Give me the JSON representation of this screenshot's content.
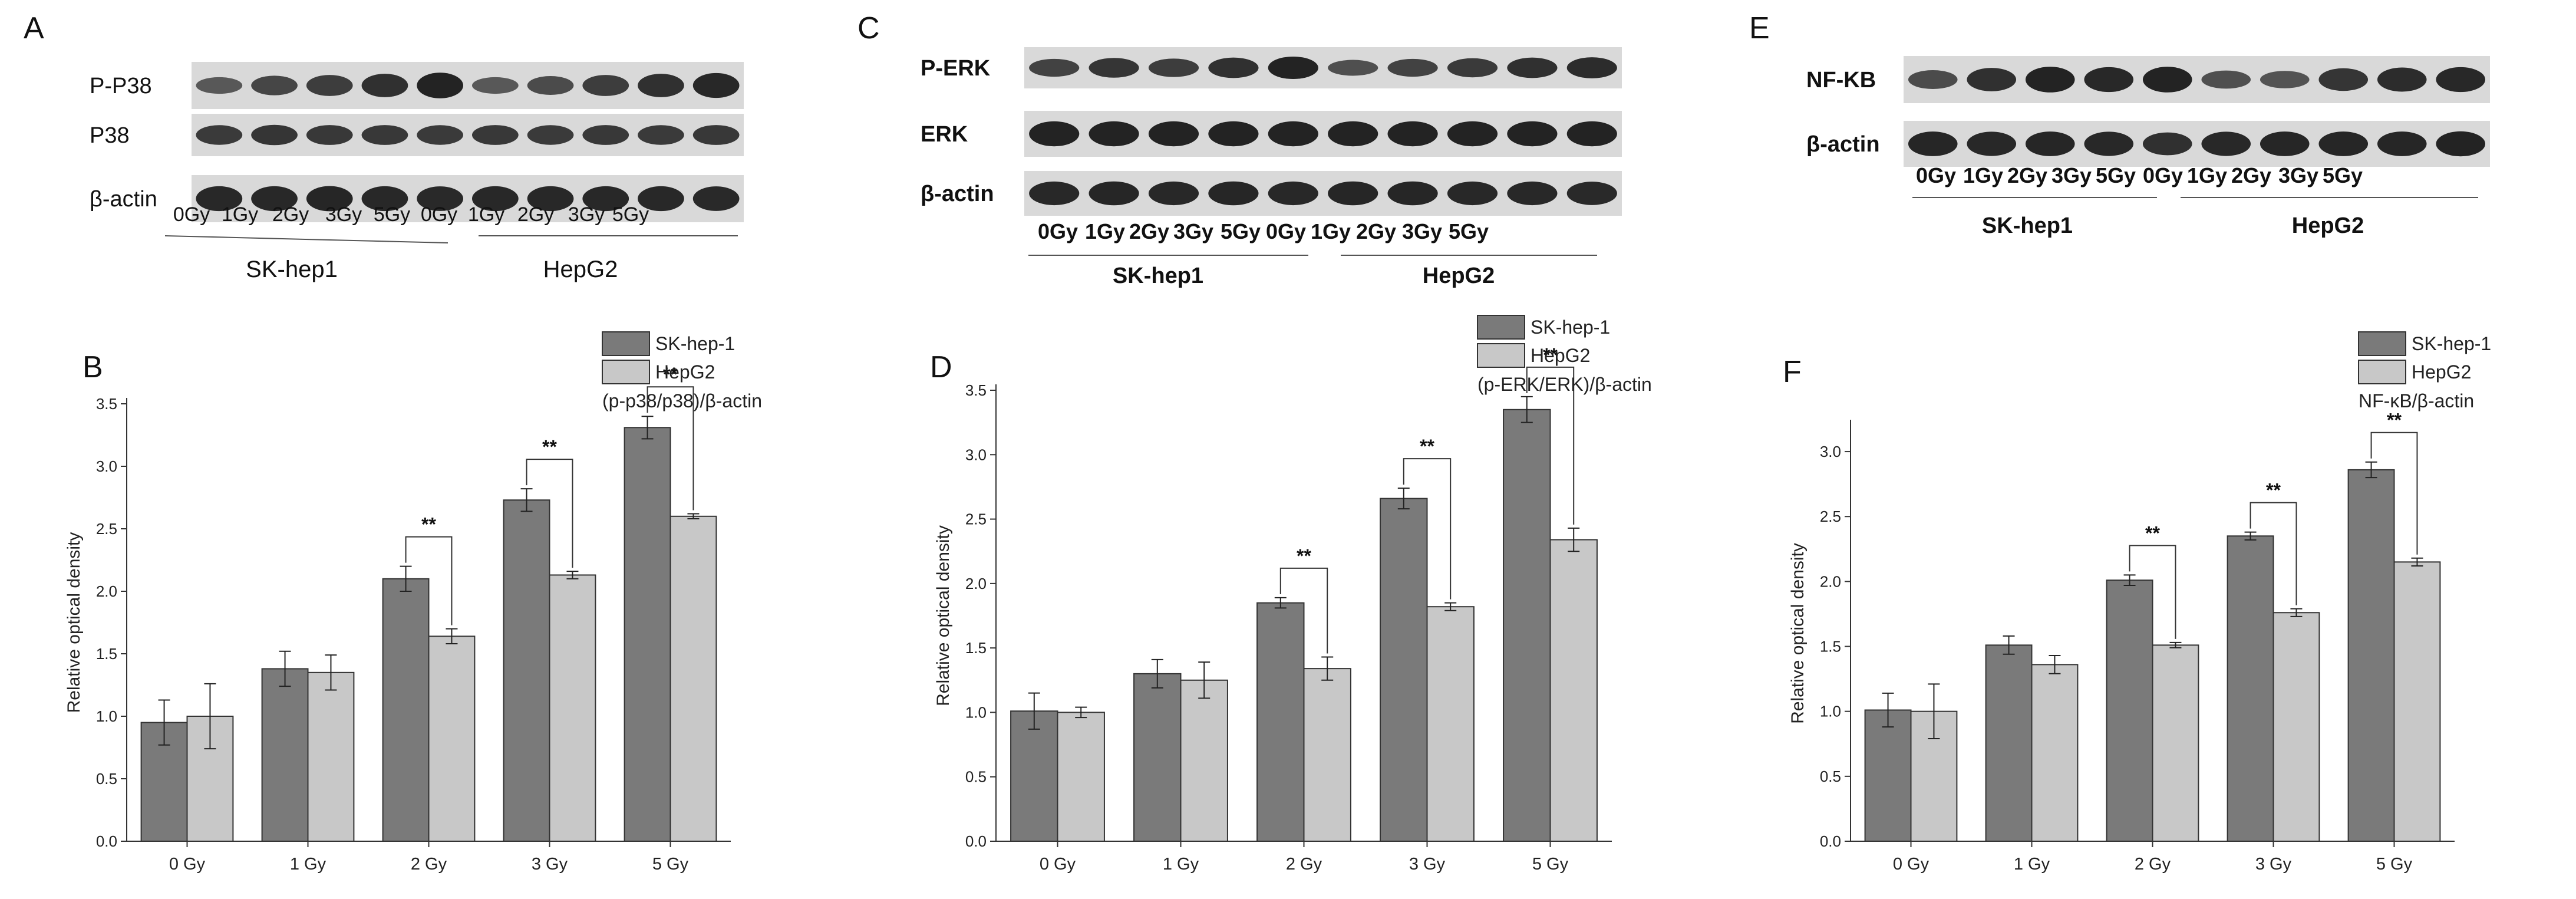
{
  "blots": [
    {
      "letter": "A",
      "rows": [
        "P-P38",
        "P38",
        "β-actin"
      ],
      "lanes": [
        "0Gy",
        "1Gy",
        "2Gy",
        "3Gy",
        "5Gy",
        "0Gy",
        "1Gy",
        "2Gy",
        "3Gy",
        "5Gy"
      ],
      "groups": [
        "SK-hep1",
        "HepG2"
      ]
    },
    {
      "letter": "C",
      "rows": [
        "P-ERK",
        "ERK",
        "β-actin"
      ],
      "lanes": [
        "0Gy",
        "1Gy",
        "2Gy",
        "3Gy",
        "5Gy",
        "0Gy",
        "1Gy",
        "2Gy",
        "3Gy",
        "5Gy"
      ],
      "groups": [
        "SK-hep1",
        "HepG2"
      ]
    },
    {
      "letter": "E",
      "rows": [
        "NF-KB",
        "β-actin"
      ],
      "lanes": [
        "0Gy",
        "1Gy",
        "2Gy",
        "3Gy",
        "5Gy",
        "0Gy",
        "1Gy",
        "2Gy",
        "3Gy",
        "5Gy"
      ],
      "groups": [
        "SK-hep1",
        "HepG2"
      ]
    }
  ],
  "chart_data": [
    {
      "letter": "B",
      "type": "bar",
      "ylabel": "Relative optical density",
      "ylim": [
        0,
        3.5
      ],
      "yticks": [
        "0.0",
        "0.5",
        "1.0",
        "1.5",
        "2.0",
        "2.5",
        "3.0",
        "3.5"
      ],
      "categories": [
        "0 Gy",
        "1 Gy",
        "2 Gy",
        "3 Gy",
        "5 Gy"
      ],
      "legend_note": "(p-p38/p38)/β-actin",
      "series": [
        {
          "name": "SK-hep-1",
          "color": "#7a7a7a",
          "values": [
            0.95,
            1.38,
            2.1,
            2.73,
            3.31
          ],
          "errors": [
            0.18,
            0.14,
            0.1,
            0.09,
            0.09
          ]
        },
        {
          "name": "HepG2",
          "color": "#c8c8c8",
          "values": [
            1.0,
            1.35,
            1.64,
            2.13,
            2.6
          ],
          "errors": [
            0.26,
            0.14,
            0.06,
            0.03,
            0.02
          ]
        }
      ],
      "significance": [
        {
          "category": "2 Gy",
          "label": "**"
        },
        {
          "category": "3 Gy",
          "label": "**"
        },
        {
          "category": "5 Gy",
          "label": "**"
        }
      ]
    },
    {
      "letter": "D",
      "type": "bar",
      "ylabel": "Relative optical density",
      "ylim": [
        0,
        3.5
      ],
      "yticks": [
        "0.0",
        "0.5",
        "1.0",
        "1.5",
        "2.0",
        "2.5",
        "3.0",
        "3.5"
      ],
      "categories": [
        "0 Gy",
        "1 Gy",
        "2 Gy",
        "3 Gy",
        "5 Gy"
      ],
      "legend_note": "(p-ERK/ERK)/β-actin",
      "series": [
        {
          "name": "SK-hep-1",
          "color": "#7a7a7a",
          "values": [
            1.01,
            1.3,
            1.85,
            2.66,
            3.35
          ],
          "errors": [
            0.14,
            0.11,
            0.04,
            0.08,
            0.1
          ]
        },
        {
          "name": "HepG2",
          "color": "#c8c8c8",
          "values": [
            1.0,
            1.25,
            1.34,
            1.82,
            2.34
          ],
          "errors": [
            0.04,
            0.14,
            0.09,
            0.03,
            0.09
          ]
        }
      ],
      "significance": [
        {
          "category": "2 Gy",
          "label": "**"
        },
        {
          "category": "3 Gy",
          "label": "**"
        },
        {
          "category": "5 Gy",
          "label": "**"
        }
      ]
    },
    {
      "letter": "F",
      "type": "bar",
      "ylabel": "Relative optical density",
      "ylim": [
        0,
        3.2
      ],
      "yticks": [
        "0.0",
        "0.5",
        "1.0",
        "1.5",
        "2.0",
        "2.5",
        "3.0"
      ],
      "categories": [
        "0 Gy",
        "1 Gy",
        "2 Gy",
        "3 Gy",
        "5 Gy"
      ],
      "legend_note": "NF-κB/β-actin",
      "series": [
        {
          "name": "SK-hep-1",
          "color": "#7a7a7a",
          "values": [
            1.01,
            1.51,
            2.01,
            2.35,
            2.86
          ],
          "errors": [
            0.13,
            0.07,
            0.04,
            0.03,
            0.06
          ]
        },
        {
          "name": "HepG2",
          "color": "#c8c8c8",
          "values": [
            1.0,
            1.36,
            1.51,
            1.76,
            2.15
          ],
          "errors": [
            0.21,
            0.07,
            0.02,
            0.03,
            0.03
          ]
        }
      ],
      "significance": [
        {
          "category": "2 Gy",
          "label": "**"
        },
        {
          "category": "3 Gy",
          "label": "**"
        },
        {
          "category": "5 Gy",
          "label": "**"
        }
      ]
    }
  ]
}
